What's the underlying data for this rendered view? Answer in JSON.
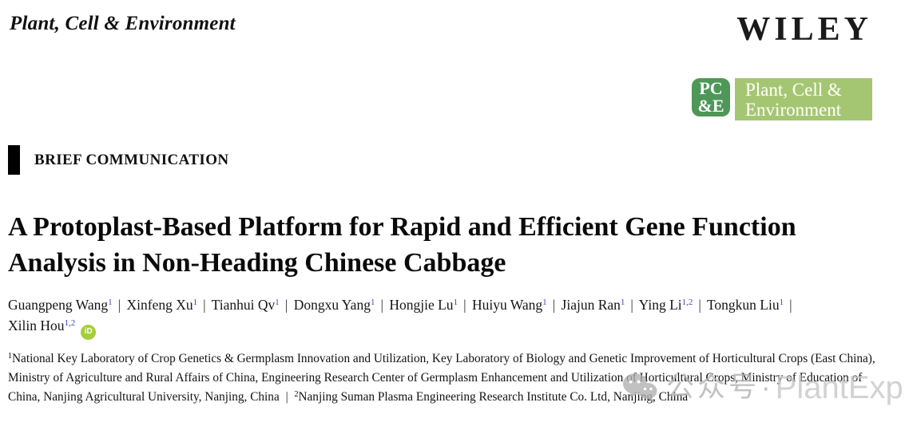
{
  "masthead": {
    "journal_name": "Plant, Cell & Environment",
    "publisher_wordmark": "WILEY",
    "badge": {
      "monogram_top": "PC",
      "monogram_bottom": "&E",
      "banner_line1": "Plant, Cell &",
      "banner_line2": "Environment"
    }
  },
  "article": {
    "category": "BRIEF COMMUNICATION",
    "title": "A Protoplast-Based Platform for Rapid and Efficient Gene Function Analysis in Non-Heading Chinese Cabbage",
    "author_separator": "|",
    "authors": [
      {
        "name": "Guangpeng Wang",
        "sup": "1"
      },
      {
        "name": "Xinfeng Xu",
        "sup": "1"
      },
      {
        "name": "Tianhui Qv",
        "sup": "1"
      },
      {
        "name": "Dongxu Yang",
        "sup": "1"
      },
      {
        "name": "Hongjie Lu",
        "sup": "1"
      },
      {
        "name": "Huiyu Wang",
        "sup": "1"
      },
      {
        "name": "Jiajun Ran",
        "sup": "1"
      },
      {
        "name": "Ying Li",
        "sup": "1,2"
      },
      {
        "name": "Tongkun Liu",
        "sup": "1"
      },
      {
        "name": "Xilin Hou",
        "sup": "1,2",
        "orcid": true
      }
    ],
    "orcid_label": "iD",
    "affiliation_separator": "|",
    "affiliations": [
      {
        "sup": "1",
        "text": "National Key Laboratory of Crop Genetics & Germplasm Innovation and Utilization, Key Laboratory of Biology and Genetic Improvement of Horticultural Crops (East China), Ministry of Agriculture and Rural Affairs of China, Engineering Research Center of Germplasm Enhancement and Utilization of Horticultural Crops, Ministry of Education of China, Nanjing Agricultural University, Nanjing, China"
      },
      {
        "sup": "2",
        "text": "Nanjing Suman Plasma Engineering Research Institute Co. Ltd, Nanjing, China"
      }
    ]
  },
  "watermark": {
    "icon": "wechat-icon",
    "text_cn": "公众号",
    "separator": "·",
    "text_en": "PlantExp"
  },
  "colors": {
    "icon_green": "#4e9758",
    "banner_green": "#a4c672",
    "orcid_green": "#a6ce39",
    "superscript_blue": "#3a49c6",
    "watermark_gray": "#b0b0b0"
  }
}
